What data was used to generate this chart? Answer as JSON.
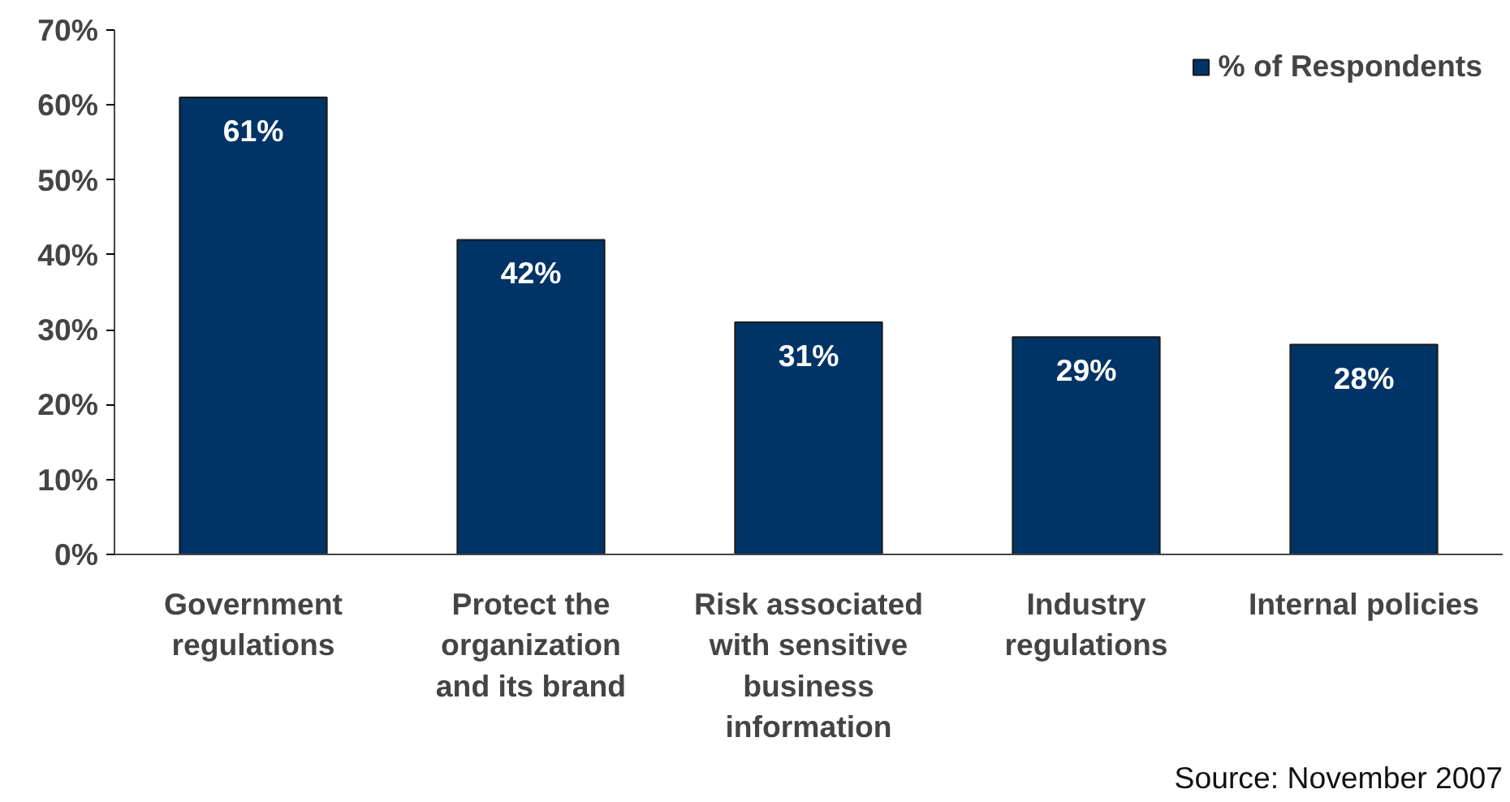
{
  "chart_data": {
    "type": "bar",
    "categories": [
      "Government\nregulations",
      "Protect the\norganization\nand its brand",
      "Risk associated\nwith sensitive\nbusiness\ninformation",
      "Industry\nregulations",
      "Internal policies"
    ],
    "series": [
      {
        "name": "% of Respondents",
        "color": "#003366",
        "values": [
          61,
          42,
          31,
          29,
          28
        ],
        "value_labels": [
          "61%",
          "42%",
          "31%",
          "29%",
          "28%"
        ]
      }
    ],
    "ylim": [
      0,
      70
    ],
    "yticks": [
      {
        "value": 0,
        "label": "0%"
      },
      {
        "value": 10,
        "label": "10%"
      },
      {
        "value": 20,
        "label": "20%"
      },
      {
        "value": 30,
        "label": "30%"
      },
      {
        "value": 40,
        "label": "40%"
      },
      {
        "value": 50,
        "label": "50%"
      },
      {
        "value": 60,
        "label": "60%"
      },
      {
        "value": 70,
        "label": "70%"
      }
    ],
    "grid": false,
    "legend": "top right",
    "annotations": [
      "Source: November 2007"
    ]
  }
}
